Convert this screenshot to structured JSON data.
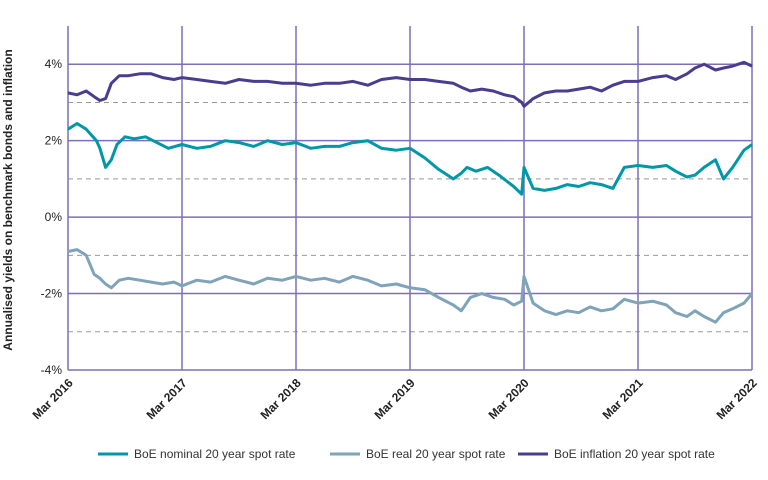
{
  "chart_data": {
    "type": "line",
    "ylabel": "Annualised yields on benchmark bonds and inflation",
    "ylim": [
      -4,
      5
    ],
    "y_ticks": [
      {
        "value": 4,
        "label": "4%"
      },
      {
        "value": 2,
        "label": "2%"
      },
      {
        "value": 0,
        "label": "0%"
      },
      {
        "value": -2,
        "label": "-2%"
      },
      {
        "value": -4,
        "label": "-4%"
      }
    ],
    "x_ticks": [
      {
        "value": 2016.17,
        "label": "Mar 2016"
      },
      {
        "value": 2017.17,
        "label": "Mar 2017"
      },
      {
        "value": 2018.17,
        "label": "Mar 2018"
      },
      {
        "value": 2019.17,
        "label": "Mar 2019"
      },
      {
        "value": 2020.17,
        "label": "Mar 2020"
      },
      {
        "value": 2021.17,
        "label": "Mar 2021"
      },
      {
        "value": 2022.17,
        "label": "Mar 2022"
      }
    ],
    "xlim": [
      2016.17,
      2022.17
    ],
    "grid": true,
    "legend_position": "bottom",
    "series": [
      {
        "name": "BoE nominal 20 year spot rate",
        "color": "#0097a7",
        "x": [
          2016.17,
          2016.25,
          2016.33,
          2016.42,
          2016.45,
          2016.5,
          2016.55,
          2016.6,
          2016.67,
          2016.75,
          2016.85,
          2016.95,
          2017.05,
          2017.17,
          2017.3,
          2017.42,
          2017.55,
          2017.67,
          2017.8,
          2017.92,
          2018.05,
          2018.17,
          2018.3,
          2018.42,
          2018.55,
          2018.67,
          2018.8,
          2018.92,
          2019.05,
          2019.17,
          2019.3,
          2019.42,
          2019.55,
          2019.62,
          2019.67,
          2019.75,
          2019.85,
          2019.95,
          2020.08,
          2020.15,
          2020.17,
          2020.25,
          2020.35,
          2020.45,
          2020.55,
          2020.65,
          2020.75,
          2020.85,
          2020.95,
          2021.05,
          2021.17,
          2021.3,
          2021.42,
          2021.5,
          2021.6,
          2021.67,
          2021.75,
          2021.85,
          2021.92,
          2022.0,
          2022.1,
          2022.17
        ],
        "values": [
          2.3,
          2.45,
          2.3,
          2.0,
          1.8,
          1.3,
          1.5,
          1.9,
          2.1,
          2.05,
          2.1,
          1.95,
          1.8,
          1.9,
          1.8,
          1.85,
          2.0,
          1.95,
          1.85,
          2.0,
          1.9,
          1.95,
          1.8,
          1.85,
          1.85,
          1.95,
          2.0,
          1.8,
          1.75,
          1.8,
          1.55,
          1.25,
          1.0,
          1.15,
          1.3,
          1.2,
          1.3,
          1.1,
          0.8,
          0.6,
          1.3,
          0.75,
          0.7,
          0.75,
          0.85,
          0.8,
          0.9,
          0.85,
          0.75,
          1.3,
          1.35,
          1.3,
          1.35,
          1.2,
          1.05,
          1.1,
          1.3,
          1.5,
          1.0,
          1.3,
          1.75,
          1.9
        ]
      },
      {
        "name": "BoE real 20 year spot rate",
        "color": "#7fa3b8",
        "x": [
          2016.17,
          2016.25,
          2016.33,
          2016.4,
          2016.45,
          2016.5,
          2016.55,
          2016.62,
          2016.7,
          2016.8,
          2016.9,
          2017.0,
          2017.1,
          2017.17,
          2017.3,
          2017.42,
          2017.55,
          2017.67,
          2017.8,
          2017.92,
          2018.05,
          2018.17,
          2018.3,
          2018.42,
          2018.55,
          2018.67,
          2018.8,
          2018.92,
          2019.05,
          2019.17,
          2019.3,
          2019.42,
          2019.55,
          2019.62,
          2019.7,
          2019.8,
          2019.9,
          2020.0,
          2020.08,
          2020.15,
          2020.17,
          2020.25,
          2020.35,
          2020.45,
          2020.55,
          2020.65,
          2020.75,
          2020.85,
          2020.95,
          2021.05,
          2021.17,
          2021.3,
          2021.42,
          2021.5,
          2021.6,
          2021.67,
          2021.75,
          2021.85,
          2021.92,
          2022.0,
          2022.1,
          2022.17
        ],
        "values": [
          -0.9,
          -0.85,
          -1.0,
          -1.5,
          -1.6,
          -1.75,
          -1.85,
          -1.65,
          -1.6,
          -1.65,
          -1.7,
          -1.75,
          -1.7,
          -1.8,
          -1.65,
          -1.7,
          -1.55,
          -1.65,
          -1.75,
          -1.6,
          -1.65,
          -1.55,
          -1.65,
          -1.6,
          -1.7,
          -1.55,
          -1.65,
          -1.8,
          -1.75,
          -1.85,
          -1.9,
          -2.1,
          -2.3,
          -2.45,
          -2.1,
          -2.0,
          -2.1,
          -2.15,
          -2.3,
          -2.2,
          -1.55,
          -2.25,
          -2.45,
          -2.55,
          -2.45,
          -2.5,
          -2.35,
          -2.45,
          -2.4,
          -2.15,
          -2.25,
          -2.2,
          -2.3,
          -2.5,
          -2.6,
          -2.45,
          -2.6,
          -2.75,
          -2.5,
          -2.4,
          -2.25,
          -2.0
        ]
      },
      {
        "name": "BoE inflation 20 year spot rate",
        "color": "#4b3c8e",
        "x": [
          2016.17,
          2016.25,
          2016.33,
          2016.4,
          2016.45,
          2016.5,
          2016.55,
          2016.62,
          2016.7,
          2016.8,
          2016.9,
          2017.0,
          2017.1,
          2017.17,
          2017.3,
          2017.42,
          2017.55,
          2017.67,
          2017.8,
          2017.92,
          2018.05,
          2018.17,
          2018.3,
          2018.42,
          2018.55,
          2018.67,
          2018.8,
          2018.92,
          2019.05,
          2019.17,
          2019.3,
          2019.42,
          2019.55,
          2019.62,
          2019.7,
          2019.8,
          2019.9,
          2020.0,
          2020.08,
          2020.15,
          2020.17,
          2020.25,
          2020.35,
          2020.45,
          2020.55,
          2020.65,
          2020.75,
          2020.85,
          2020.95,
          2021.05,
          2021.17,
          2021.3,
          2021.42,
          2021.5,
          2021.6,
          2021.67,
          2021.75,
          2021.85,
          2021.92,
          2022.0,
          2022.1,
          2022.17
        ],
        "values": [
          3.25,
          3.2,
          3.3,
          3.15,
          3.05,
          3.1,
          3.5,
          3.7,
          3.7,
          3.75,
          3.75,
          3.65,
          3.6,
          3.65,
          3.6,
          3.55,
          3.5,
          3.6,
          3.55,
          3.55,
          3.5,
          3.5,
          3.45,
          3.5,
          3.5,
          3.55,
          3.45,
          3.6,
          3.65,
          3.6,
          3.6,
          3.55,
          3.5,
          3.4,
          3.3,
          3.35,
          3.3,
          3.2,
          3.15,
          3.0,
          2.9,
          3.1,
          3.25,
          3.3,
          3.3,
          3.35,
          3.4,
          3.3,
          3.45,
          3.55,
          3.55,
          3.65,
          3.7,
          3.6,
          3.75,
          3.9,
          4.0,
          3.85,
          3.9,
          3.95,
          4.05,
          3.95
        ]
      }
    ]
  }
}
